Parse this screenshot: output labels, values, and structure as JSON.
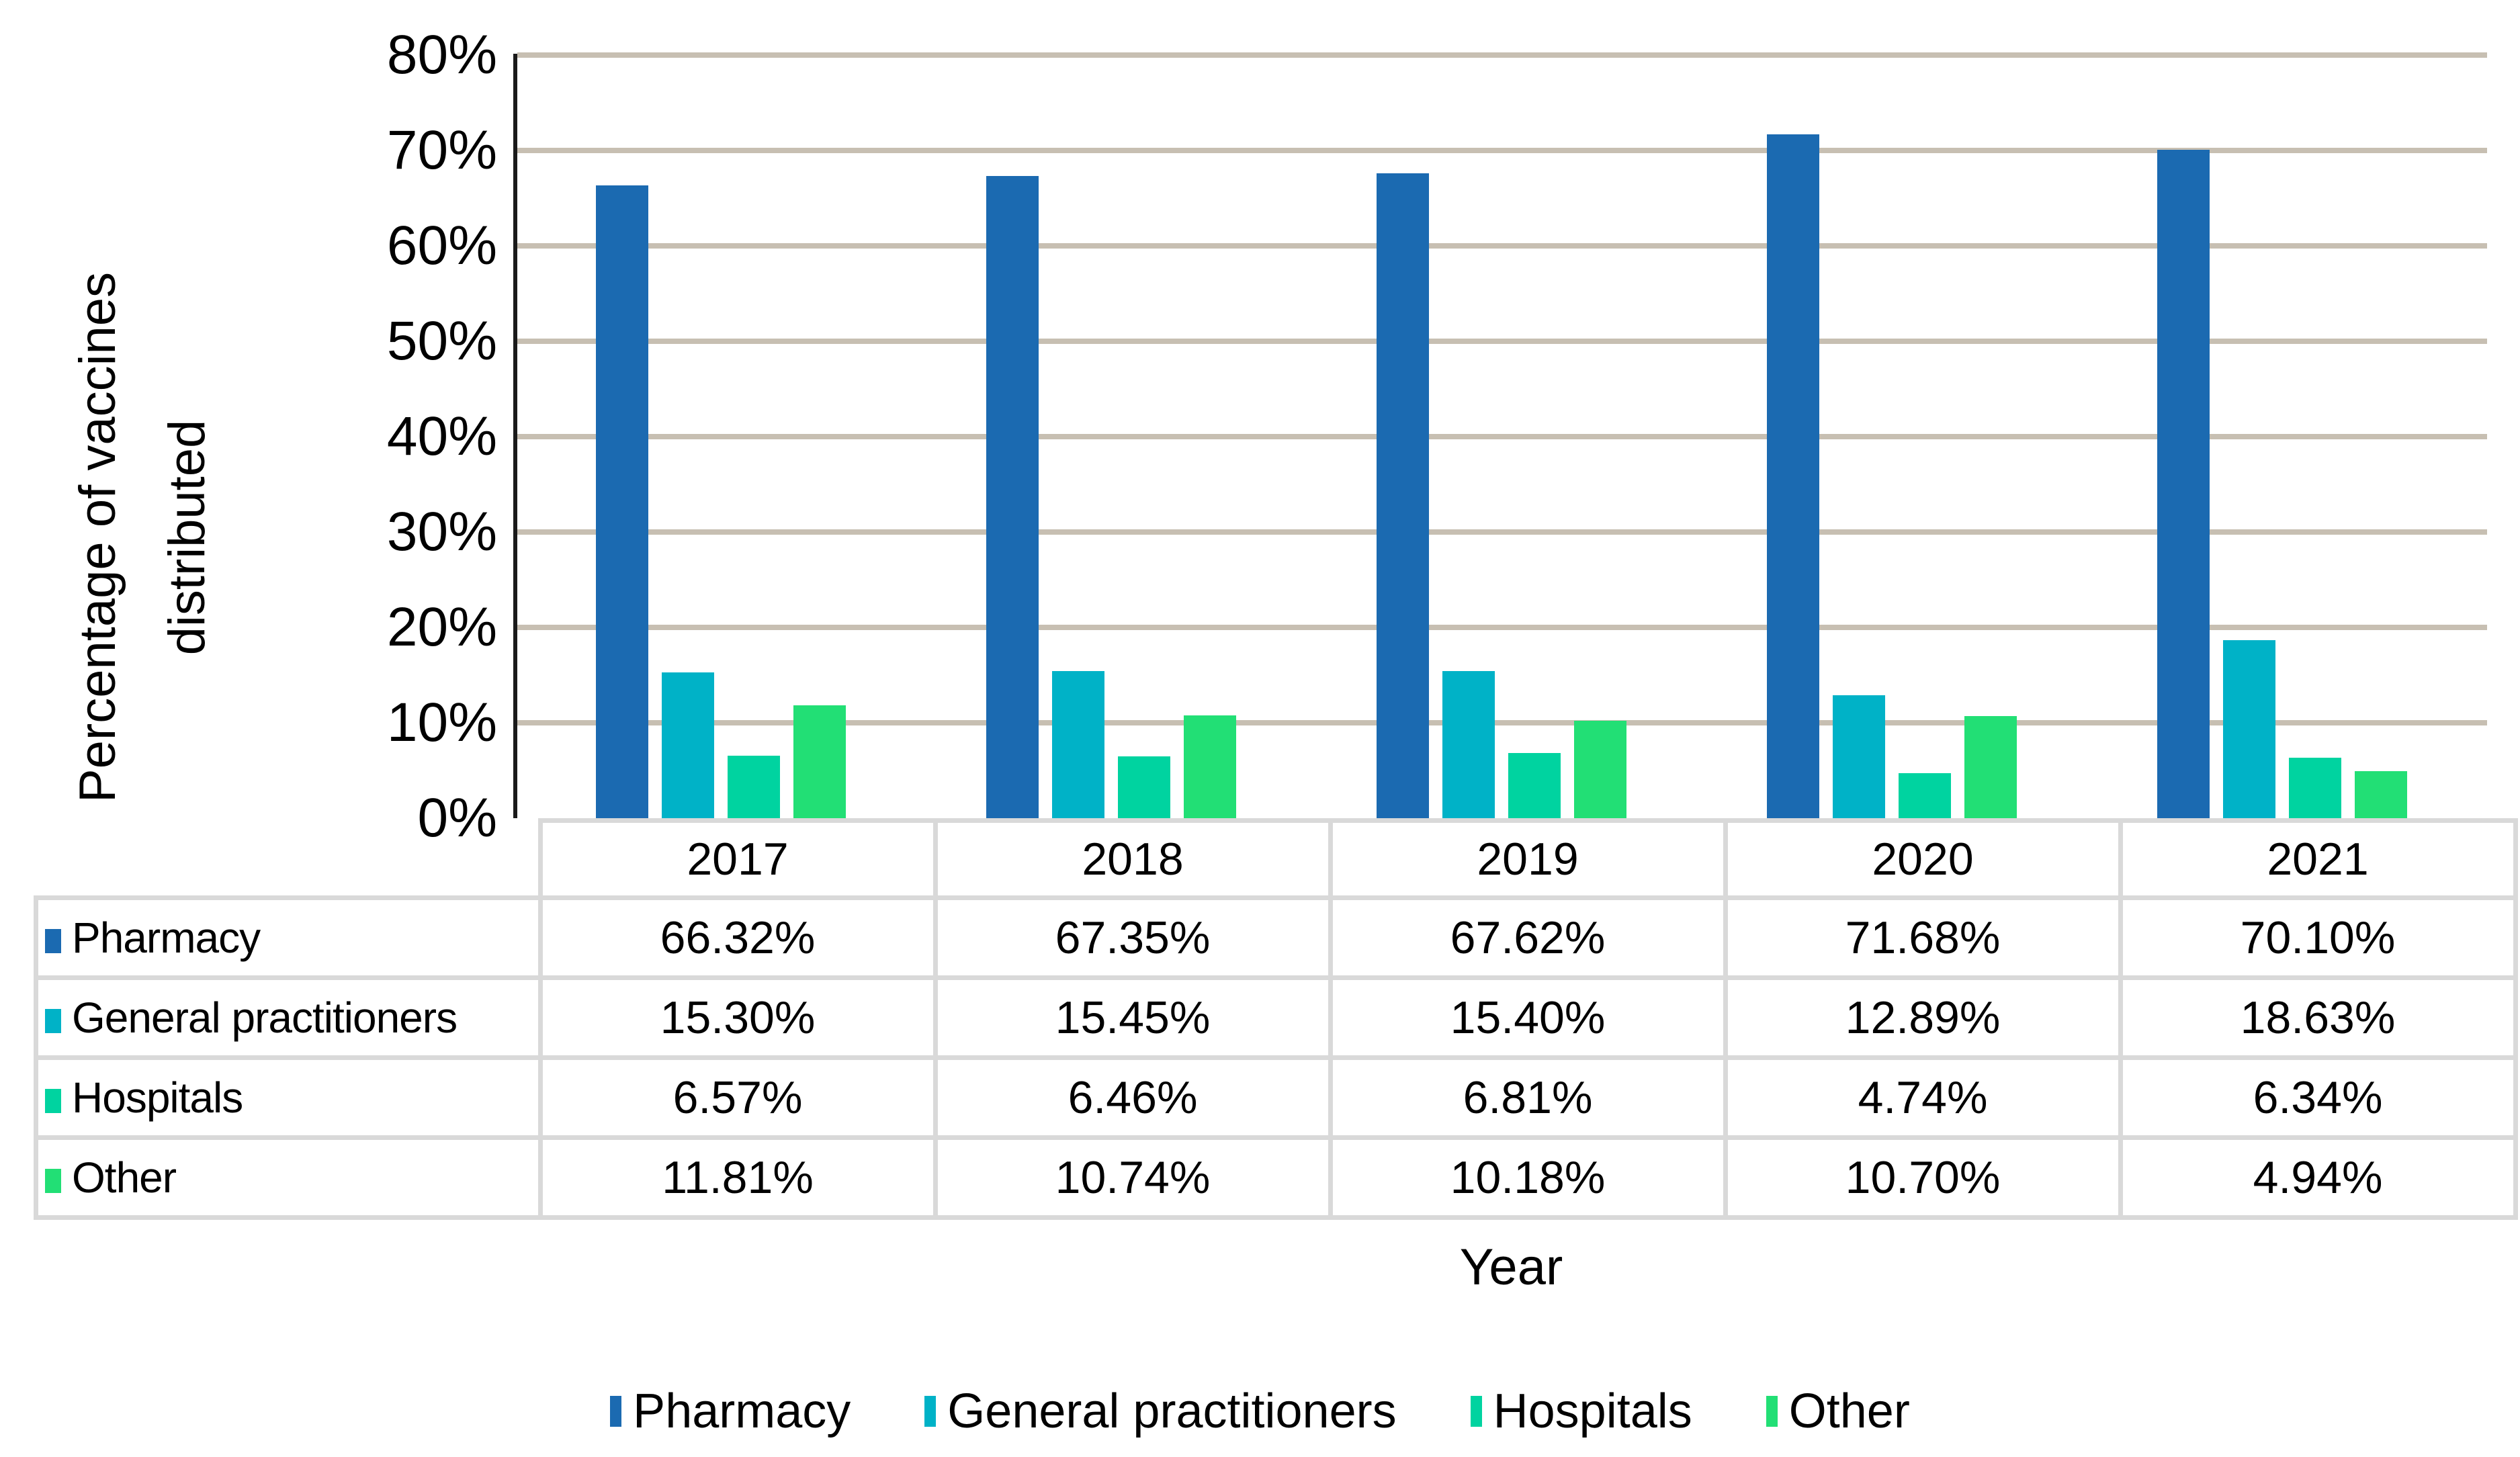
{
  "colors": {
    "background": "#FFFFFF",
    "gridline": "#C7BFB2",
    "axis": "#1A1A1A",
    "table_border": "#D9D9D9",
    "text": "#000000"
  },
  "chart_data": {
    "type": "bar",
    "title": "",
    "xlabel": "Year",
    "ylabel": "Percentage of vaccines distributed",
    "ylabel_lines": [
      "Percentage of vaccines",
      "distributed"
    ],
    "y_axis": {
      "min": 0,
      "max": 80,
      "step": 10,
      "tick_labels": [
        "0%",
        "10%",
        "20%",
        "30%",
        "40%",
        "50%",
        "60%",
        "70%",
        "80%"
      ]
    },
    "grid": "horizontal",
    "legend_position": "bottom",
    "categories": [
      "2017",
      "2018",
      "2019",
      "2020",
      "2021"
    ],
    "series": [
      {
        "name": "Pharmacy",
        "color": "#1B6AB1",
        "values": [
          66.32,
          67.35,
          67.62,
          71.68,
          70.1
        ],
        "formatted": [
          "66.32%",
          "67.35%",
          "67.62%",
          "71.68%",
          "70.10%"
        ]
      },
      {
        "name": "General practitioners",
        "color": "#00B2C7",
        "values": [
          15.3,
          15.45,
          15.4,
          12.89,
          18.63
        ],
        "formatted": [
          "15.30%",
          "15.45%",
          "15.40%",
          "12.89%",
          "18.63%"
        ]
      },
      {
        "name": "Hospitals",
        "color": "#00D3A0",
        "values": [
          6.57,
          6.46,
          6.81,
          4.74,
          6.34
        ],
        "formatted": [
          "6.57%",
          "6.46%",
          "6.81%",
          "4.74%",
          "6.34%"
        ]
      },
      {
        "name": "Other",
        "color": "#22DF75",
        "values": [
          11.81,
          10.74,
          10.18,
          10.7,
          4.94
        ],
        "formatted": [
          "11.81%",
          "10.74%",
          "10.18%",
          "10.70%",
          "4.94%"
        ]
      }
    ]
  }
}
